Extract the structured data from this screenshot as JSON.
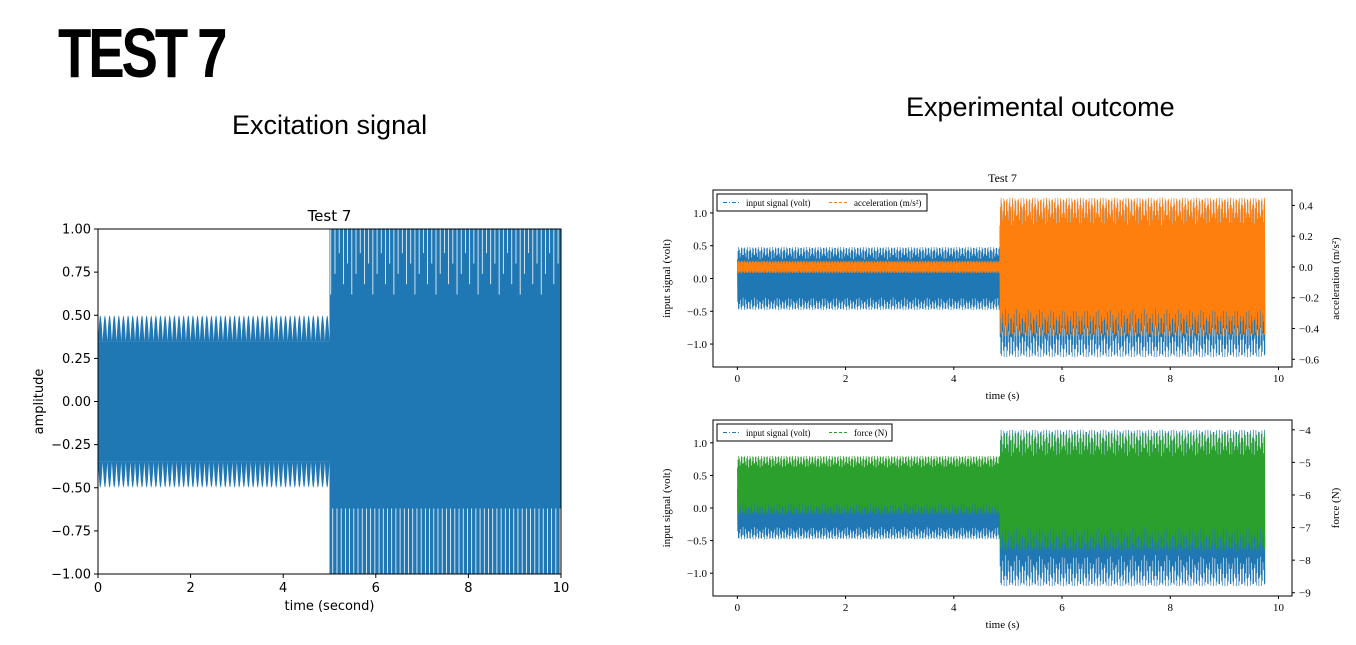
{
  "slide": {
    "title": "TEST 7",
    "left_heading": "Excitation signal",
    "right_heading": "Experimental outcome"
  },
  "colors": {
    "blue": "#1f77b4",
    "orange": "#ff7f0e",
    "green": "#2ca02c"
  },
  "chart_data": [
    {
      "type": "line",
      "title": "Test 7",
      "xlabel": "time (second)",
      "ylabel": "amplitude",
      "xlim": [
        0,
        10
      ],
      "ylim": [
        -1.0,
        1.0
      ],
      "xticks": [
        0,
        2,
        4,
        6,
        8,
        10
      ],
      "yticks": [
        -1.0,
        -0.75,
        -0.5,
        -0.25,
        0.0,
        0.25,
        0.5,
        0.75,
        1.0
      ],
      "xtick_labels": [
        "0",
        "2",
        "4",
        "6",
        "8",
        "10"
      ],
      "ytick_labels": [
        "−1.00",
        "−0.75",
        "−0.50",
        "−0.25",
        "0.00",
        "0.25",
        "0.50",
        "0.75",
        "1.00"
      ],
      "grid": false,
      "series": [
        {
          "color": "#1f77b4",
          "segments": [
            {
              "x_start": 0,
              "x_end": 5,
              "amplitude": 0.5,
              "inner_band": 0.35
            },
            {
              "x_start": 5,
              "x_end": 10,
              "amplitude": 1.0,
              "inner_band": 0.62
            }
          ]
        }
      ]
    },
    {
      "type": "line",
      "title": "Test 7",
      "xlabel": "time (s)",
      "ylabel": "input signal (volt)",
      "y2label": "acceleration (m/s²)",
      "xlim": [
        -0.45,
        10.25
      ],
      "ylim": [
        -1.35,
        1.35
      ],
      "y2lim": [
        -0.65,
        0.5
      ],
      "xticks": [
        0,
        2,
        4,
        6,
        8,
        10
      ],
      "yticks": [
        -1.0,
        -0.5,
        0.0,
        0.5,
        1.0
      ],
      "y2ticks": [
        -0.6,
        -0.4,
        -0.2,
        0.0,
        0.2,
        0.4
      ],
      "xtick_labels": [
        "0",
        "2",
        "4",
        "6",
        "8",
        "10"
      ],
      "ytick_labels": [
        "−1.0",
        "−0.5",
        "0.0",
        "0.5",
        "1.0"
      ],
      "y2tick_labels": [
        "−0.6",
        "−0.4",
        "−0.2",
        "0.0",
        "0.2",
        "0.4"
      ],
      "grid": false,
      "legend": {
        "placement": "top-left",
        "entries": [
          "input signal (volt)",
          "acceleration (m/s²)"
        ]
      },
      "series": [
        {
          "name": "input signal (volt)",
          "axis": "left",
          "color": "#1f77b4",
          "segments": [
            {
              "x_start": 0,
              "x_end": 4.85,
              "amplitude": 0.48
            },
            {
              "x_start": 4.85,
              "x_end": 9.75,
              "amplitude": 1.2
            }
          ]
        },
        {
          "name": "acceleration (m/s²)",
          "axis": "right",
          "color": "#ff7f0e",
          "segments": [
            {
              "x_start": 0,
              "x_end": 4.85,
              "center": 0.0,
              "amplitude": 0.04
            },
            {
              "x_start": 4.85,
              "x_end": 9.75,
              "center": 0.0,
              "amplitude": 0.45
            }
          ]
        }
      ]
    },
    {
      "type": "line",
      "title": "",
      "xlabel": "time (s)",
      "ylabel": "input signal (volt)",
      "y2label": "force (N)",
      "xlim": [
        -0.45,
        10.25
      ],
      "ylim": [
        -1.35,
        1.35
      ],
      "y2lim": [
        -9.1,
        -3.7
      ],
      "xticks": [
        0,
        2,
        4,
        6,
        8,
        10
      ],
      "yticks": [
        -1.0,
        -0.5,
        0.0,
        0.5,
        1.0
      ],
      "y2ticks": [
        -9,
        -8,
        -7,
        -6,
        -5,
        -4
      ],
      "xtick_labels": [
        "0",
        "2",
        "4",
        "6",
        "8",
        "10"
      ],
      "ytick_labels": [
        "−1.0",
        "−0.5",
        "0.0",
        "0.5",
        "1.0"
      ],
      "y2tick_labels": [
        "−9",
        "−8",
        "−7",
        "−6",
        "−5",
        "−4"
      ],
      "grid": false,
      "legend": {
        "placement": "top-left",
        "entries": [
          "input signal (volt)",
          "force (N)"
        ]
      },
      "series": [
        {
          "name": "input signal (volt)",
          "axis": "left",
          "color": "#1f77b4",
          "segments": [
            {
              "x_start": 0,
              "x_end": 4.85,
              "amplitude": 0.48
            },
            {
              "x_start": 4.85,
              "x_end": 9.75,
              "amplitude": 1.2
            }
          ]
        },
        {
          "name": "force (N)",
          "axis": "right",
          "color": "#2ca02c",
          "segments": [
            {
              "x_start": 0,
              "x_end": 4.85,
              "center": -5.7,
              "amplitude": 0.9
            },
            {
              "x_start": 4.85,
              "x_end": 9.75,
              "center": -5.9,
              "amplitude": 1.8
            }
          ]
        }
      ]
    }
  ]
}
